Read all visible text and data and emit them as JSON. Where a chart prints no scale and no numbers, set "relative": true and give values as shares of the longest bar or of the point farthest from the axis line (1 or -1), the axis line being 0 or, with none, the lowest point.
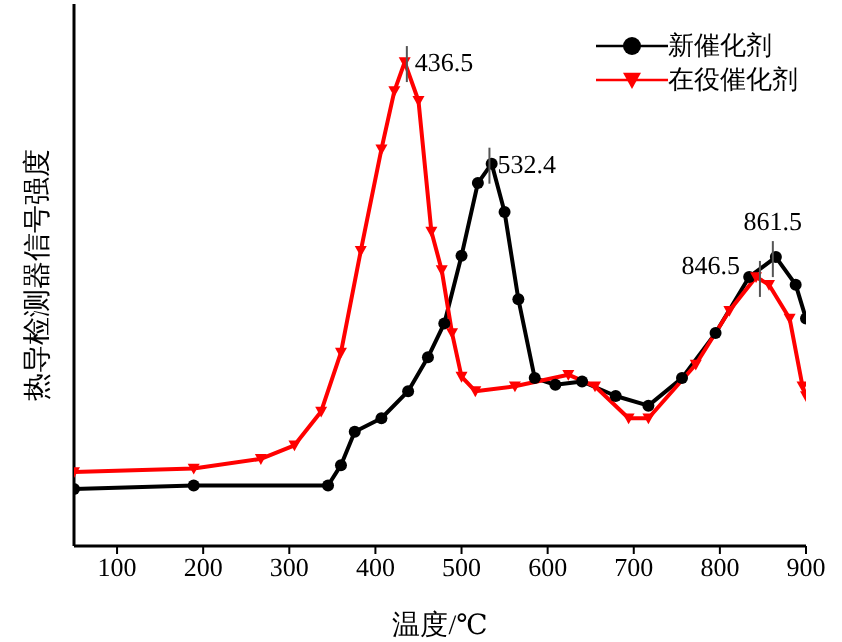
{
  "chart_data": {
    "type": "line",
    "xlabel": "温度/℃",
    "ylabel": "热导检测器信号强度",
    "relative": true,
    "xlim": [
      50,
      900
    ],
    "xticks": [
      100,
      200,
      300,
      400,
      500,
      600,
      700,
      800,
      900
    ],
    "grid": false,
    "legend": "top right",
    "line_style": "solid",
    "series": [
      {
        "name": "新催化剂",
        "color": "#000000",
        "marker": "circle",
        "x": [
          50,
          189,
          345,
          360,
          376,
          407,
          438,
          461,
          480,
          500,
          519,
          535,
          550,
          566,
          585,
          609,
          640,
          679,
          717,
          756,
          795,
          834,
          865,
          888,
          900
        ],
        "values": [
          0.118,
          0.125,
          0.125,
          0.167,
          0.236,
          0.264,
          0.32,
          0.39,
          0.46,
          0.6,
          0.75,
          0.79,
          0.69,
          0.51,
          0.347,
          0.333,
          0.34,
          0.31,
          0.29,
          0.347,
          0.44,
          0.556,
          0.597,
          0.54,
          0.47
        ]
      },
      {
        "name": "在役催化剂",
        "color": "#ff0000",
        "marker": "triangle",
        "x": [
          50,
          189,
          267,
          306,
          337,
          360,
          383,
          407,
          422,
          434,
          450,
          465,
          477,
          489,
          500,
          516,
          562,
          624,
          655,
          694,
          717,
          772,
          811,
          842,
          857,
          881,
          896,
          900
        ],
        "values": [
          0.153,
          0.16,
          0.18,
          0.208,
          0.278,
          0.4,
          0.61,
          0.82,
          0.94,
          1.0,
          0.92,
          0.65,
          0.57,
          0.44,
          0.35,
          0.32,
          0.33,
          0.354,
          0.33,
          0.264,
          0.264,
          0.375,
          0.486,
          0.556,
          0.54,
          0.47,
          0.33,
          0.31
        ]
      }
    ],
    "annotations": [
      {
        "text": "436.5",
        "x": 436.5,
        "y": 1.0
      },
      {
        "text": "532.4",
        "x": 532.4,
        "y": 0.79
      },
      {
        "text": "861.5",
        "x": 861.5,
        "y": 0.597
      },
      {
        "text": "846.5",
        "x": 846.5,
        "y": 0.556
      }
    ]
  }
}
